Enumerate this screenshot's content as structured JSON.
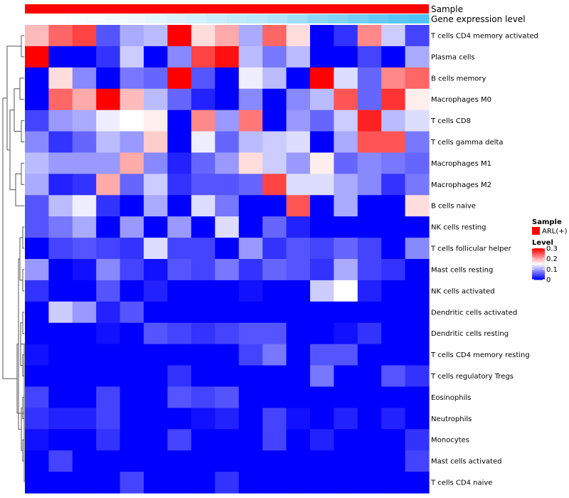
{
  "chart_data": {
    "type": "heatmap",
    "annotation_rows": [
      {
        "name": "Sample",
        "label": "Sample"
      },
      {
        "name": "Gene expression level",
        "label": "Gene expression level"
      }
    ],
    "sample_annotation": {
      "group": "ARL(+)",
      "color": "#ff0000"
    },
    "gene_expression_level": [
      0.0,
      0.0,
      0.02,
      0.05,
      0.07,
      0.1,
      0.15,
      0.2,
      0.25,
      0.3,
      0.35,
      0.4,
      0.45,
      0.55,
      0.65,
      0.72,
      0.8,
      0.88,
      0.95,
      1.0
    ],
    "rows": [
      "T cells CD4 memory activated",
      "Plasma cells",
      "B cells memory",
      "Macrophages M0",
      "T cells CD8",
      "T cells gamma delta",
      "Macrophages M1",
      "Macrophages M2",
      "B cells naive",
      "NK cells resting",
      "T cells follicular helper",
      "Mast cells resting",
      "NK cells activated",
      "Dendritic cells activated",
      "Dendritic cells resting",
      "T cells CD4 memory resting",
      "T cells regulatory  Tregs",
      "Eosinophils",
      "Neutrophils",
      "Monocytes",
      "Mast cells activated",
      "T cells CD4 naive"
    ],
    "values": [
      [
        0.19,
        0.24,
        0.26,
        0.05,
        0.1,
        0.11,
        0.3,
        0.17,
        0.2,
        0.1,
        0.24,
        0.17,
        0.0,
        0.03,
        0.22,
        0.12,
        0.04
      ],
      [
        0.3,
        0.0,
        0.0,
        0.03,
        0.12,
        0.0,
        0.08,
        0.26,
        0.29,
        0.11,
        0.07,
        0.11,
        0.0,
        0.0,
        0.04,
        0.0,
        0.1
      ],
      [
        0.0,
        0.17,
        0.08,
        0.0,
        0.07,
        0.06,
        0.3,
        0.05,
        0.0,
        0.14,
        0.11,
        0.0,
        0.3,
        0.13,
        0.06,
        0.22,
        0.24
      ],
      [
        0.0,
        0.24,
        0.2,
        0.3,
        0.19,
        0.11,
        0.06,
        0.02,
        0.0,
        0.08,
        0.0,
        0.08,
        0.11,
        0.25,
        0.06,
        0.27,
        0.16
      ],
      [
        0.04,
        0.09,
        0.1,
        0.14,
        0.15,
        0.16,
        0.0,
        0.22,
        0.09,
        0.23,
        0.0,
        0.09,
        0.06,
        0.12,
        0.28,
        0.11,
        0.13
      ],
      [
        0.08,
        0.03,
        0.06,
        0.11,
        0.09,
        0.18,
        0.0,
        0.14,
        0.06,
        0.11,
        0.12,
        0.13,
        0.0,
        0.1,
        0.25,
        0.25,
        0.07
      ],
      [
        0.11,
        0.09,
        0.09,
        0.09,
        0.2,
        0.08,
        0.02,
        0.06,
        0.09,
        0.17,
        0.12,
        0.09,
        0.16,
        0.06,
        0.08,
        0.07,
        0.06
      ],
      [
        0.1,
        0.02,
        0.03,
        0.2,
        0.06,
        0.12,
        0.03,
        0.05,
        0.05,
        0.06,
        0.26,
        0.13,
        0.13,
        0.1,
        0.08,
        0.03,
        0.07
      ],
      [
        0.05,
        0.11,
        0.14,
        0.03,
        0.0,
        0.1,
        0.0,
        0.13,
        0.07,
        0.0,
        0.0,
        0.25,
        0.0,
        0.1,
        0.0,
        0.0,
        0.17
      ],
      [
        0.05,
        0.07,
        0.1,
        0.0,
        0.09,
        0.0,
        0.09,
        0.0,
        0.13,
        0.0,
        0.06,
        0.02,
        0.0,
        0.0,
        0.0,
        0.0,
        0.0
      ],
      [
        0.0,
        0.04,
        0.05,
        0.04,
        0.03,
        0.13,
        0.04,
        0.04,
        0.0,
        0.09,
        0.03,
        0.05,
        0.04,
        0.06,
        0.04,
        0.0,
        0.08
      ],
      [
        0.09,
        0.0,
        0.01,
        0.08,
        0.04,
        0.01,
        0.05,
        0.04,
        0.07,
        0.03,
        0.06,
        0.05,
        0.03,
        0.1,
        0.04,
        0.03,
        0.0
      ],
      [
        0.03,
        0.0,
        0.0,
        0.05,
        0.0,
        0.02,
        0.0,
        0.0,
        0.0,
        0.01,
        0.0,
        0.0,
        0.12,
        0.15,
        0.02,
        0.0,
        0.0
      ],
      [
        0.0,
        0.12,
        0.09,
        0.02,
        0.05,
        0.0,
        0.0,
        0.0,
        0.0,
        0.0,
        0.0,
        0.0,
        0.0,
        0.0,
        0.0,
        0.0,
        0.0
      ],
      [
        0.0,
        0.0,
        0.0,
        0.01,
        0.0,
        0.05,
        0.04,
        0.03,
        0.04,
        0.05,
        0.05,
        0.0,
        0.0,
        0.01,
        0.03,
        0.0,
        0.0
      ],
      [
        0.01,
        0.0,
        0.0,
        0.0,
        0.0,
        0.0,
        0.0,
        0.0,
        0.0,
        0.04,
        0.07,
        0.0,
        0.05,
        0.05,
        0.0,
        0.0,
        0.0
      ],
      [
        0.0,
        0.0,
        0.0,
        0.0,
        0.0,
        0.0,
        0.03,
        0.0,
        0.0,
        0.0,
        0.0,
        0.0,
        0.07,
        0.0,
        0.0,
        0.05,
        0.03
      ],
      [
        0.04,
        0.0,
        0.0,
        0.04,
        0.0,
        0.0,
        0.05,
        0.04,
        0.05,
        0.0,
        0.0,
        0.0,
        0.0,
        0.0,
        0.0,
        0.0,
        0.0
      ],
      [
        0.03,
        0.02,
        0.02,
        0.04,
        0.0,
        0.0,
        0.0,
        0.01,
        0.02,
        0.0,
        0.04,
        0.01,
        0.0,
        0.02,
        0.0,
        0.02,
        0.0
      ],
      [
        0.01,
        0.0,
        0.0,
        0.03,
        0.0,
        0.0,
        0.04,
        0.0,
        0.0,
        0.0,
        0.04,
        0.0,
        0.02,
        0.0,
        0.0,
        0.0,
        0.03
      ],
      [
        0.0,
        0.04,
        0.0,
        0.0,
        0.0,
        0.0,
        0.0,
        0.0,
        0.0,
        0.0,
        0.0,
        0.0,
        0.0,
        0.0,
        0.0,
        0.0,
        0.04
      ],
      [
        0.0,
        0.0,
        0.0,
        0.0,
        0.04,
        0.0,
        0.0,
        0.0,
        0.03,
        0.0,
        0.0,
        0.0,
        0.0,
        0.0,
        0.0,
        0.0,
        0.0
      ]
    ],
    "legend": {
      "sample_title": "Sample",
      "sample_entry": "ARL(+)",
      "level_title": "Level",
      "ticks": [
        {
          "value": 0.3,
          "label": "0.3"
        },
        {
          "value": 0.2,
          "label": "0.2"
        },
        {
          "value": 0.1,
          "label": "0.1"
        },
        {
          "value": 0.0,
          "label": "0"
        }
      ],
      "range": [
        0,
        0.3
      ]
    },
    "colors": {
      "low": "#0000ff",
      "mid": "#ffffff",
      "high": "#ff0000",
      "mid_value": 0.15,
      "sample": "#ff0000",
      "expr_low": "#ffffff",
      "expr_high": "#4fc3f7"
    }
  }
}
